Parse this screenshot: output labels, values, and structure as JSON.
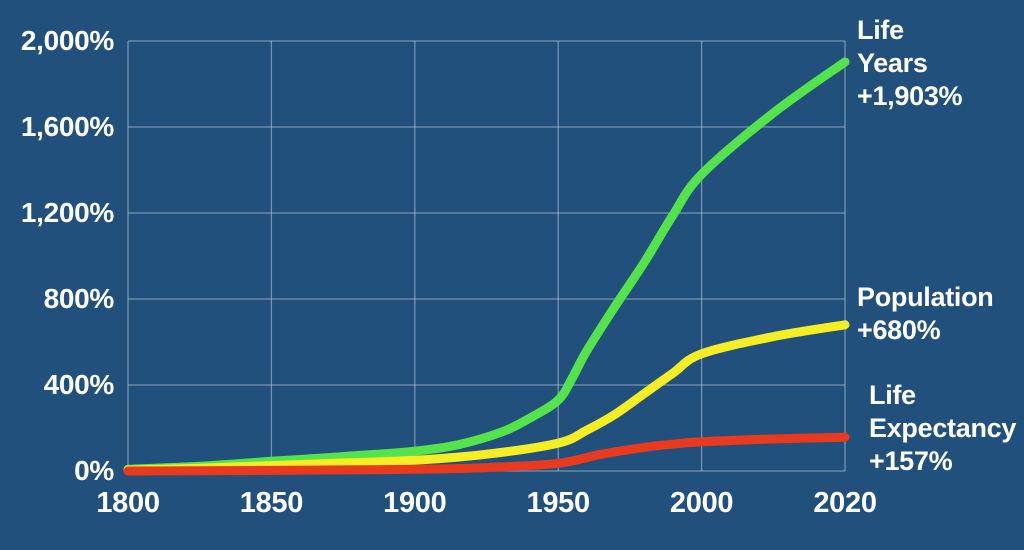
{
  "colors": {
    "background": "#20507B",
    "grid": "#C9D6E4",
    "text": "#FFFFFF",
    "life_years_green": "#55E34C",
    "population_yellow": "#F5EE24",
    "life_expectancy_red": "#E73A1E"
  },
  "chart_data": {
    "type": "line",
    "title": "",
    "grid": true,
    "legend_position": "right-annotations",
    "x_axis": {
      "tick_labels": [
        "1800",
        "1850",
        "1900",
        "1950",
        "2000",
        "2020"
      ],
      "tick_years": [
        1800,
        1850,
        1900,
        1950,
        2000,
        2020
      ],
      "note": "ticks equally spaced; 2000-2020 segment same width as 50-year segments"
    },
    "y_axis": {
      "tick_labels": [
        "2,000%",
        "1,600%",
        "1,200%",
        "800%",
        "400%",
        "0%"
      ],
      "tick_values": [
        2000,
        1600,
        1200,
        800,
        400,
        0
      ],
      "range": [
        0,
        2000
      ],
      "unit": "% growth since 1800"
    },
    "series": [
      {
        "id": "life_years",
        "name": "Life Years",
        "color": "#55E34C",
        "final_label": "+1,903%",
        "points": [
          [
            1800,
            8
          ],
          [
            1825,
            22
          ],
          [
            1850,
            45
          ],
          [
            1875,
            67
          ],
          [
            1900,
            92
          ],
          [
            1915,
            122
          ],
          [
            1930,
            180
          ],
          [
            1940,
            245
          ],
          [
            1950,
            330
          ],
          [
            1955,
            435
          ],
          [
            1960,
            560
          ],
          [
            1970,
            770
          ],
          [
            1980,
            970
          ],
          [
            1990,
            1190
          ],
          [
            2000,
            1380
          ],
          [
            2010,
            1665
          ],
          [
            2020,
            1903
          ]
        ]
      },
      {
        "id": "population",
        "name": "Population",
        "color": "#F5EE24",
        "final_label": "+680%",
        "points": [
          [
            1800,
            4
          ],
          [
            1825,
            13
          ],
          [
            1850,
            25
          ],
          [
            1875,
            37
          ],
          [
            1900,
            50
          ],
          [
            1925,
            78
          ],
          [
            1950,
            130
          ],
          [
            1960,
            190
          ],
          [
            1970,
            265
          ],
          [
            1980,
            360
          ],
          [
            1990,
            455
          ],
          [
            2000,
            545
          ],
          [
            2010,
            625
          ],
          [
            2020,
            680
          ]
        ]
      },
      {
        "id": "life_expectancy",
        "name": "Life Expectancy",
        "color": "#E73A1E",
        "final_label": "+157%",
        "points": [
          [
            1800,
            0
          ],
          [
            1825,
            1
          ],
          [
            1850,
            3
          ],
          [
            1875,
            5
          ],
          [
            1900,
            8
          ],
          [
            1925,
            16
          ],
          [
            1950,
            36
          ],
          [
            1965,
            78
          ],
          [
            1980,
            110
          ],
          [
            1990,
            125
          ],
          [
            2000,
            136
          ],
          [
            2010,
            149
          ],
          [
            2020,
            157
          ]
        ]
      }
    ],
    "annotations": [
      {
        "id": "life_years",
        "lines": [
          "Life",
          "Years",
          "+1,903%"
        ]
      },
      {
        "id": "population",
        "lines": [
          "Population",
          "+680%"
        ]
      },
      {
        "id": "life_expectancy",
        "lines": [
          "Life",
          "Expectancy",
          "+157%"
        ]
      }
    ]
  }
}
